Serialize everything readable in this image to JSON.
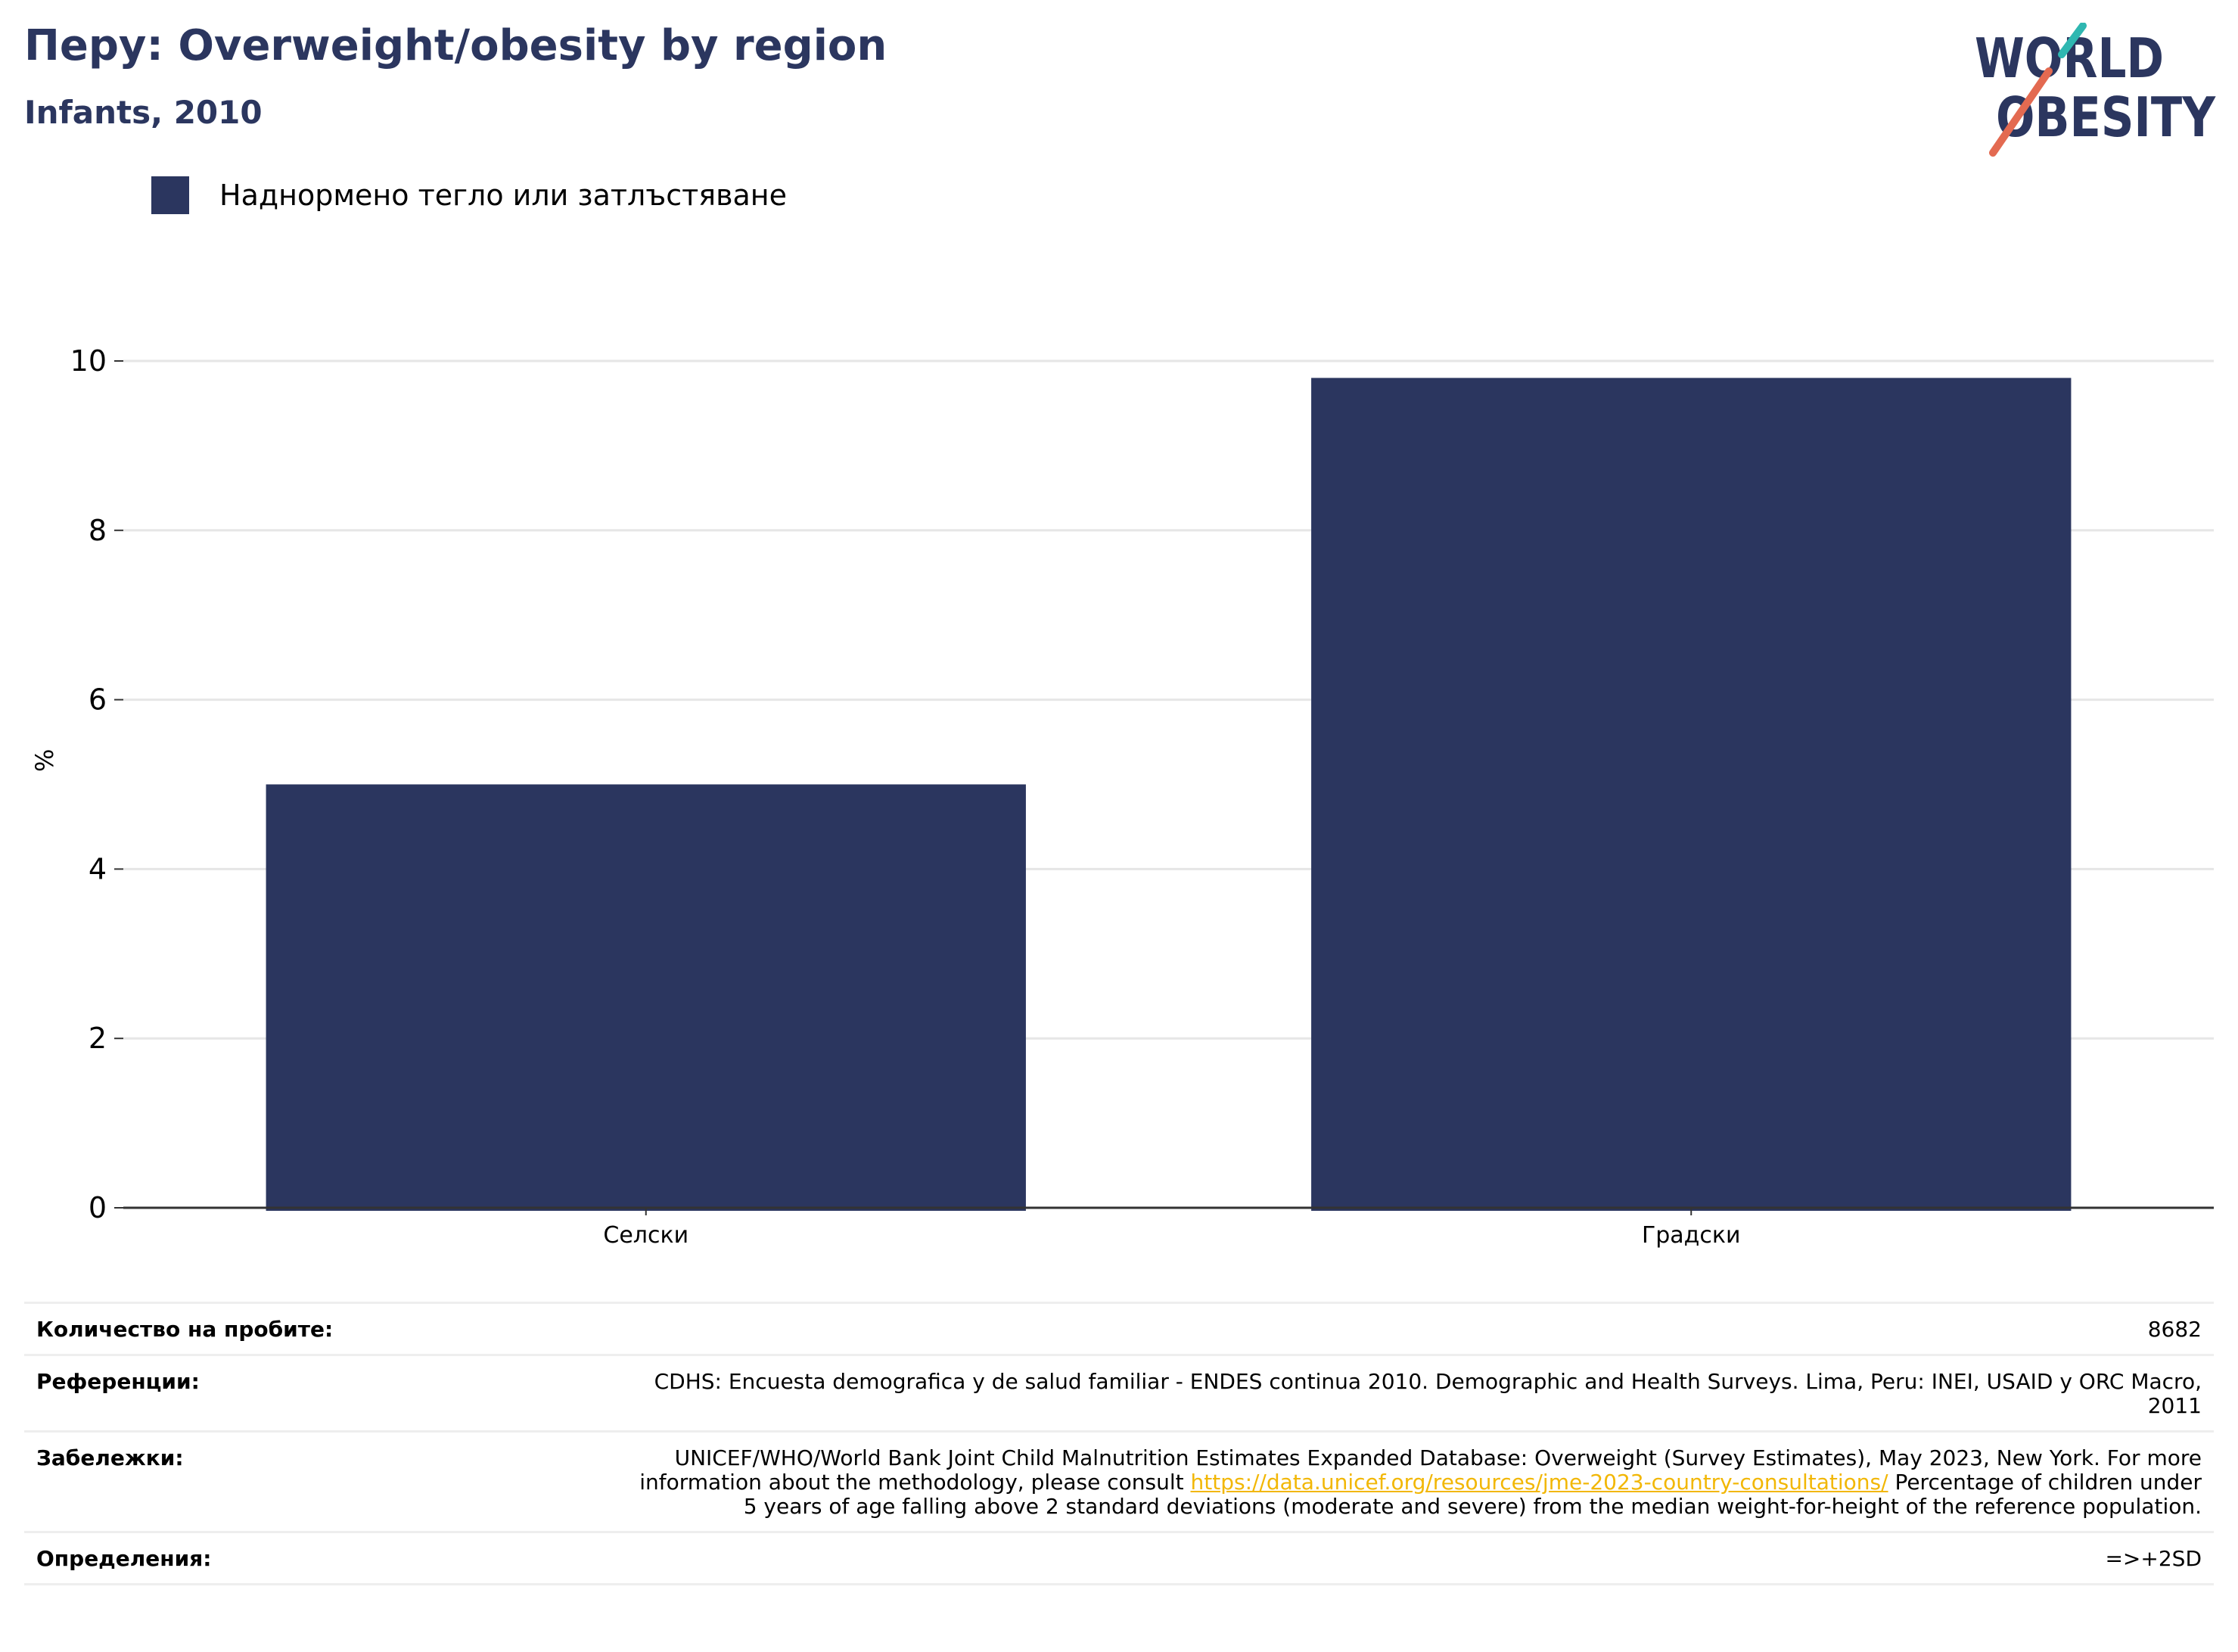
{
  "header": {
    "title": "Перу: Overweight/obesity by region",
    "subtitle": "Infants, 2010"
  },
  "logo": {
    "line1": "WORLD",
    "line2": "OBESITY",
    "text_color": "#2b365f",
    "accent_teal": "#2fb7b1",
    "accent_coral": "#e36a51"
  },
  "legend": {
    "items": [
      {
        "label": "Наднормено тегло или затлъстяване",
        "color": "#2b365f"
      }
    ]
  },
  "chart_data": {
    "type": "bar",
    "title": "Перу: Overweight/obesity by region",
    "subtitle": "Infants, 2010",
    "categories": [
      "Селски",
      "Градски"
    ],
    "series": [
      {
        "name": "Наднормено тегло или затлъстяване",
        "values": [
          5.0,
          9.8
        ],
        "color": "#2b365f"
      }
    ],
    "xlabel": "",
    "ylabel": "%",
    "ylim": [
      0,
      10
    ],
    "yticks": [
      0,
      2,
      4,
      6,
      8,
      10
    ],
    "grid": true,
    "legend_position": "top-left"
  },
  "info_table": {
    "rows": [
      {
        "label": "Количество на пробите:",
        "value": "8682"
      },
      {
        "label": "Референции:",
        "value": "CDHS: Encuesta demografica y de salud familiar - ENDES continua 2010. Demographic and Health Surveys. Lima, Peru: INEI, USAID y ORC Macro, 2011"
      },
      {
        "label": "Забележки:",
        "value_before": "UNICEF/WHO/World Bank Joint Child Malnutrition Estimates Expanded Database: Overweight (Survey Estimates), May 2023, New York. For more information about the methodology, please consult ",
        "link": "https://data.unicef.org/resources/jme-2023-country-consultations/",
        "value_after": " Percentage of children under 5 years of age falling above 2 standard deviations (moderate and severe) from the median weight-for-height of the reference population."
      },
      {
        "label": "Определения:",
        "value": "=>+2SD"
      }
    ]
  }
}
